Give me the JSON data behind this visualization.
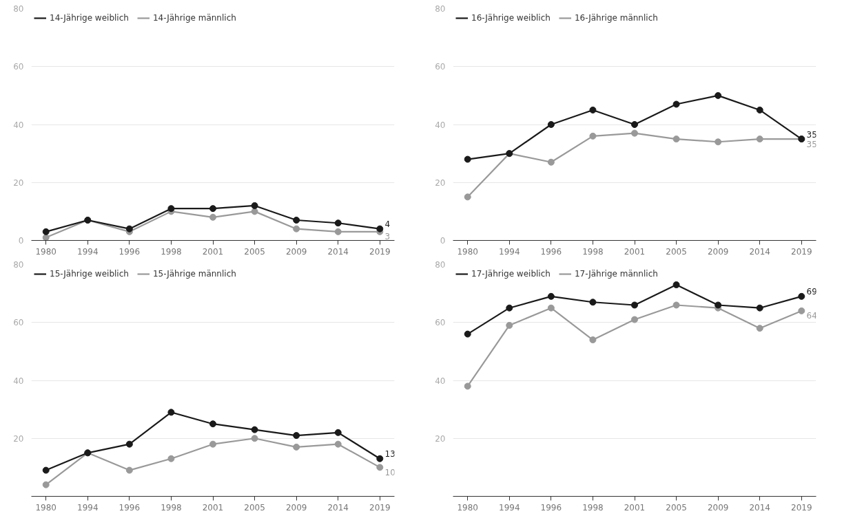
{
  "chart_data": [
    {
      "type": "line",
      "categories": [
        "1980",
        "1994",
        "1996",
        "1998",
        "2001",
        "2005",
        "2009",
        "2014",
        "2019"
      ],
      "ylim": [
        0,
        80
      ],
      "yticks": [
        0,
        20,
        40,
        60,
        80
      ],
      "grid": "y",
      "legend": "top left",
      "marker": "circle",
      "line_style": "solid",
      "series": [
        {
          "name": "14-Jährige weiblich",
          "color": "#1a1a1a",
          "values": [
            3,
            7,
            4,
            11,
            11,
            12,
            7,
            6,
            4
          ],
          "value_labels": [
            null,
            null,
            null,
            null,
            null,
            null,
            null,
            null,
            "4"
          ]
        },
        {
          "name": "14-Jährige männlich",
          "color": "#999999",
          "values": [
            1,
            7,
            3,
            10,
            8,
            10,
            4,
            3,
            3
          ],
          "value_labels": [
            null,
            null,
            null,
            null,
            null,
            null,
            null,
            null,
            "3"
          ]
        }
      ]
    },
    {
      "type": "line",
      "categories": [
        "1980",
        "1994",
        "1996",
        "1998",
        "2001",
        "2005",
        "2009",
        "2014",
        "2019"
      ],
      "ylim": [
        0,
        80
      ],
      "yticks": [
        0,
        20,
        40,
        60,
        80
      ],
      "grid": "y",
      "legend": "top left",
      "marker": "circle",
      "line_style": "solid",
      "series": [
        {
          "name": "16-Jährige weiblich",
          "color": "#1a1a1a",
          "values": [
            28,
            30,
            40,
            45,
            40,
            47,
            50,
            45,
            35
          ],
          "value_labels": [
            null,
            null,
            null,
            null,
            null,
            null,
            null,
            null,
            "35"
          ]
        },
        {
          "name": "16-Jährige männlich",
          "color": "#999999",
          "values": [
            15,
            30,
            27,
            36,
            37,
            35,
            34,
            35,
            35
          ],
          "value_labels": [
            null,
            null,
            null,
            null,
            null,
            null,
            null,
            null,
            "35"
          ]
        }
      ]
    },
    {
      "type": "line",
      "categories": [
        "1980",
        "1994",
        "1996",
        "1998",
        "2001",
        "2005",
        "2009",
        "2014",
        "2019"
      ],
      "ylim": [
        0,
        80
      ],
      "yticks": [
        20,
        40,
        60,
        80
      ],
      "grid": "y",
      "legend": "top left",
      "marker": "circle",
      "line_style": "solid",
      "series": [
        {
          "name": "15-Jährige weiblich",
          "color": "#1a1a1a",
          "values": [
            9,
            15,
            18,
            29,
            25,
            23,
            21,
            22,
            13
          ],
          "value_labels": [
            null,
            null,
            null,
            null,
            null,
            null,
            null,
            null,
            "13"
          ]
        },
        {
          "name": "15-Jährige männlich",
          "color": "#999999",
          "values": [
            4,
            15,
            9,
            13,
            18,
            20,
            17,
            18,
            10
          ],
          "value_labels": [
            null,
            null,
            null,
            null,
            null,
            null,
            null,
            null,
            "10"
          ]
        }
      ]
    },
    {
      "type": "line",
      "categories": [
        "1980",
        "1994",
        "1996",
        "1998",
        "2001",
        "2005",
        "2009",
        "2014",
        "2019"
      ],
      "ylim": [
        0,
        80
      ],
      "yticks": [
        20,
        40,
        60,
        80
      ],
      "grid": "y",
      "legend": "top left",
      "marker": "circle",
      "line_style": "solid",
      "series": [
        {
          "name": "17-Jährige weiblich",
          "color": "#1a1a1a",
          "values": [
            56,
            65,
            69,
            67,
            66,
            73,
            66,
            65,
            69
          ],
          "value_labels": [
            null,
            null,
            null,
            null,
            null,
            null,
            null,
            null,
            "69"
          ]
        },
        {
          "name": "17-Jährige männlich",
          "color": "#999999",
          "values": [
            38,
            59,
            65,
            54,
            61,
            66,
            65,
            58,
            64
          ],
          "value_labels": [
            null,
            null,
            null,
            null,
            null,
            null,
            null,
            null,
            "64"
          ]
        }
      ]
    }
  ]
}
